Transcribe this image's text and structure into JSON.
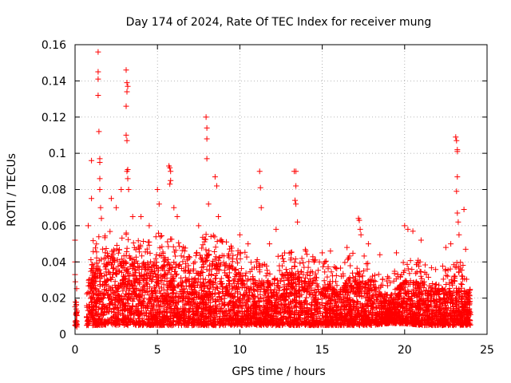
{
  "chart_data": {
    "type": "scatter",
    "title": "Day 174 of 2024, Rate Of TEC Index for receiver mung",
    "xlabel": "GPS time / hours",
    "ylabel": "ROTI / TECUs",
    "xlim": [
      0,
      25
    ],
    "ylim": [
      0,
      0.16
    ],
    "x_ticks": [
      0,
      5,
      10,
      15,
      20,
      25
    ],
    "x_tick_labels": [
      "0",
      "5",
      "10",
      "15",
      "20",
      "25"
    ],
    "y_ticks": [
      0,
      0.02,
      0.04,
      0.06,
      0.08,
      0.1,
      0.12,
      0.14,
      0.16
    ],
    "y_tick_labels": [
      "0",
      "0.02",
      "0.04",
      "0.06",
      "0.08",
      "0.1",
      "0.12",
      "0.14",
      "0.16"
    ],
    "grid": true,
    "marker": "+",
    "color": "#ff0000",
    "data_extent_hours": [
      0,
      24
    ],
    "series": [
      {
        "name": "ROTI",
        "baseline_envelope": [
          [
            0.0,
            0.005,
            0.02
          ],
          [
            0.5,
            0.0,
            0.0
          ],
          [
            0.75,
            0.005,
            0.025
          ],
          [
            1.0,
            0.005,
            0.04
          ],
          [
            2.0,
            0.005,
            0.045
          ],
          [
            3.0,
            0.005,
            0.045
          ],
          [
            4.0,
            0.005,
            0.04
          ],
          [
            5.0,
            0.005,
            0.045
          ],
          [
            6.0,
            0.005,
            0.04
          ],
          [
            7.0,
            0.005,
            0.035
          ],
          [
            8.0,
            0.005,
            0.045
          ],
          [
            9.0,
            0.005,
            0.04
          ],
          [
            10.0,
            0.005,
            0.035
          ],
          [
            11.0,
            0.005,
            0.03
          ],
          [
            12.0,
            0.005,
            0.03
          ],
          [
            13.0,
            0.005,
            0.035
          ],
          [
            14.0,
            0.005,
            0.035
          ],
          [
            15.0,
            0.005,
            0.03
          ],
          [
            16.0,
            0.005,
            0.025
          ],
          [
            17.0,
            0.005,
            0.035
          ],
          [
            18.0,
            0.005,
            0.03
          ],
          [
            19.0,
            0.006,
            0.02
          ],
          [
            20.0,
            0.006,
            0.03
          ],
          [
            21.0,
            0.005,
            0.03
          ],
          [
            22.0,
            0.005,
            0.025
          ],
          [
            23.0,
            0.005,
            0.03
          ],
          [
            24.0,
            0.005,
            0.025
          ]
        ],
        "peaks": [
          [
            0.0,
            0.052
          ],
          [
            0.0,
            0.04
          ],
          [
            0.0,
            0.033
          ],
          [
            0.8,
            0.06
          ],
          [
            1.0,
            0.096
          ],
          [
            1.0,
            0.075
          ],
          [
            1.4,
            0.156
          ],
          [
            1.4,
            0.145
          ],
          [
            1.4,
            0.141
          ],
          [
            1.4,
            0.132
          ],
          [
            1.45,
            0.112
          ],
          [
            1.5,
            0.097
          ],
          [
            1.5,
            0.095
          ],
          [
            1.5,
            0.086
          ],
          [
            1.5,
            0.08
          ],
          [
            1.55,
            0.07
          ],
          [
            1.6,
            0.064
          ],
          [
            2.2,
            0.075
          ],
          [
            2.5,
            0.07
          ],
          [
            2.8,
            0.08
          ],
          [
            3.1,
            0.146
          ],
          [
            3.15,
            0.139
          ],
          [
            3.2,
            0.137
          ],
          [
            3.15,
            0.134
          ],
          [
            3.1,
            0.126
          ],
          [
            3.1,
            0.11
          ],
          [
            3.15,
            0.107
          ],
          [
            3.2,
            0.091
          ],
          [
            3.15,
            0.09
          ],
          [
            3.2,
            0.086
          ],
          [
            3.25,
            0.08
          ],
          [
            3.5,
            0.065
          ],
          [
            4.0,
            0.065
          ],
          [
            4.5,
            0.06
          ],
          [
            5.0,
            0.08
          ],
          [
            5.1,
            0.072
          ],
          [
            5.7,
            0.093
          ],
          [
            5.75,
            0.092
          ],
          [
            5.8,
            0.09
          ],
          [
            5.8,
            0.085
          ],
          [
            5.75,
            0.083
          ],
          [
            6.0,
            0.07
          ],
          [
            6.2,
            0.065
          ],
          [
            7.5,
            0.06
          ],
          [
            7.95,
            0.12
          ],
          [
            8.0,
            0.114
          ],
          [
            8.0,
            0.108
          ],
          [
            8.0,
            0.097
          ],
          [
            8.1,
            0.072
          ],
          [
            8.5,
            0.087
          ],
          [
            8.6,
            0.082
          ],
          [
            8.7,
            0.065
          ],
          [
            10.0,
            0.055
          ],
          [
            10.5,
            0.05
          ],
          [
            11.2,
            0.09
          ],
          [
            11.25,
            0.081
          ],
          [
            11.3,
            0.07
          ],
          [
            11.8,
            0.05
          ],
          [
            12.2,
            0.058
          ],
          [
            13.3,
            0.09
          ],
          [
            13.4,
            0.09
          ],
          [
            13.4,
            0.082
          ],
          [
            13.35,
            0.074
          ],
          [
            13.4,
            0.072
          ],
          [
            13.5,
            0.062
          ],
          [
            14.0,
            0.046
          ],
          [
            14.5,
            0.04
          ],
          [
            15.0,
            0.045
          ],
          [
            15.5,
            0.046
          ],
          [
            16.5,
            0.048
          ],
          [
            17.2,
            0.064
          ],
          [
            17.25,
            0.063
          ],
          [
            17.3,
            0.058
          ],
          [
            17.35,
            0.055
          ],
          [
            17.8,
            0.05
          ],
          [
            18.5,
            0.044
          ],
          [
            19.5,
            0.045
          ],
          [
            20.0,
            0.06
          ],
          [
            20.2,
            0.058
          ],
          [
            20.5,
            0.057
          ],
          [
            21.0,
            0.052
          ],
          [
            22.5,
            0.048
          ],
          [
            22.8,
            0.05
          ],
          [
            23.1,
            0.109
          ],
          [
            23.15,
            0.107
          ],
          [
            23.2,
            0.102
          ],
          [
            23.2,
            0.101
          ],
          [
            23.2,
            0.087
          ],
          [
            23.15,
            0.079
          ],
          [
            23.2,
            0.067
          ],
          [
            23.25,
            0.062
          ],
          [
            23.3,
            0.055
          ],
          [
            23.6,
            0.069
          ],
          [
            23.7,
            0.047
          ]
        ]
      }
    ]
  }
}
